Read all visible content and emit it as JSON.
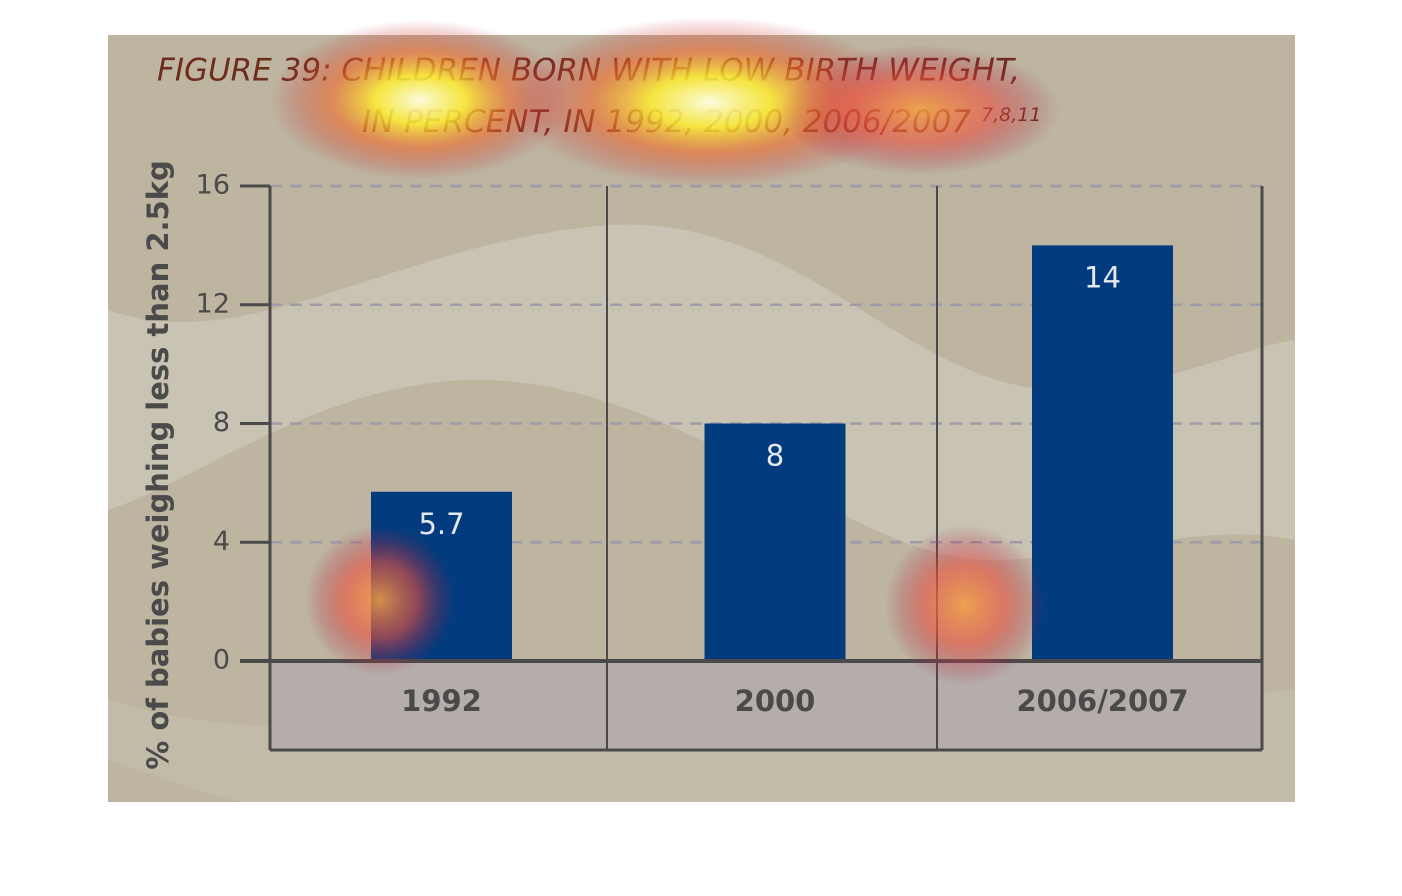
{
  "chart_data": {
    "type": "bar",
    "title": "FIGURE 39: CHILDREN BORN WITH LOW BIRTH WEIGHT,",
    "subtitle": "IN PERCENT, IN 1992, 2000, 2006/2007",
    "subtitle_superscript": "7,8,11",
    "y_label": "% of babies weighing less than 2.5kg",
    "categories": [
      "1992",
      "2000",
      "2006/2007"
    ],
    "values": [
      5.7,
      8,
      14
    ],
    "color": "#033c7e",
    "ylim": [
      0,
      16
    ],
    "yticks": [
      0,
      4,
      8,
      12,
      16
    ],
    "grid": true
  }
}
